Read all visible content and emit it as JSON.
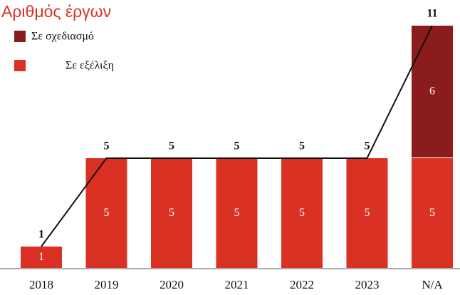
{
  "chart_data": {
    "type": "bar",
    "stacked": true,
    "title": "Αριθμός έργων",
    "categories": [
      "2018",
      "2019",
      "2020",
      "2021",
      "2022",
      "2023",
      "N/A"
    ],
    "series": [
      {
        "name": "Σε εξέλιξη",
        "color": "#d93224",
        "values": [
          1,
          5,
          5,
          5,
          5,
          5,
          5
        ]
      },
      {
        "name": "Σε σχεδιασμό",
        "color": "#8b1c1c",
        "values": [
          null,
          null,
          null,
          null,
          null,
          null,
          6
        ]
      }
    ],
    "totals": [
      1,
      5,
      5,
      5,
      5,
      5,
      11
    ],
    "ylim": [
      0,
      11
    ]
  }
}
